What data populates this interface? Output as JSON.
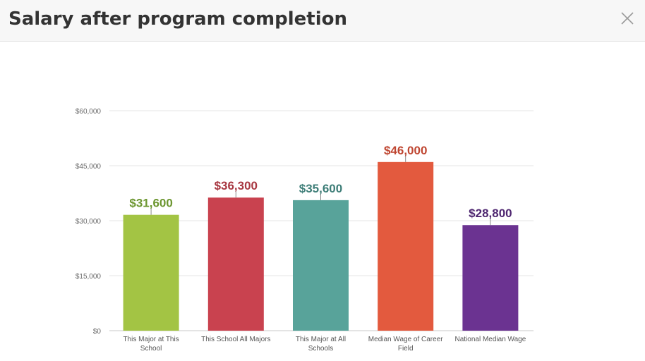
{
  "header": {
    "title": "Salary after program completion"
  },
  "icons": {
    "close": "close-icon"
  },
  "chart_data": {
    "type": "bar",
    "categories": [
      [
        "This Major at This",
        "School"
      ],
      [
        "This School All Majors"
      ],
      [
        "This Major at All",
        "Schools"
      ],
      [
        "Median Wage of Career",
        "Field"
      ],
      [
        "National Median Wage"
      ]
    ],
    "values": [
      31600,
      36300,
      35600,
      46000,
      28800
    ],
    "value_labels": [
      "$31,600",
      "$36,300",
      "$35,600",
      "$46,000",
      "$28,800"
    ],
    "colors": [
      "#a3c444",
      "#c9424f",
      "#58a39a",
      "#e35a3e",
      "#6b3391"
    ],
    "label_colors": [
      "#6c9630",
      "#a83842",
      "#3e7e78",
      "#bf4631",
      "#4e2670"
    ],
    "ylim": [
      0,
      60000
    ],
    "yticks": [
      0,
      15000,
      30000,
      45000,
      60000
    ],
    "ytick_labels": [
      "$0",
      "$15,000",
      "$30,000",
      "$45,000",
      "$60,000"
    ],
    "grid": true,
    "title": "",
    "xlabel": "",
    "ylabel": ""
  }
}
